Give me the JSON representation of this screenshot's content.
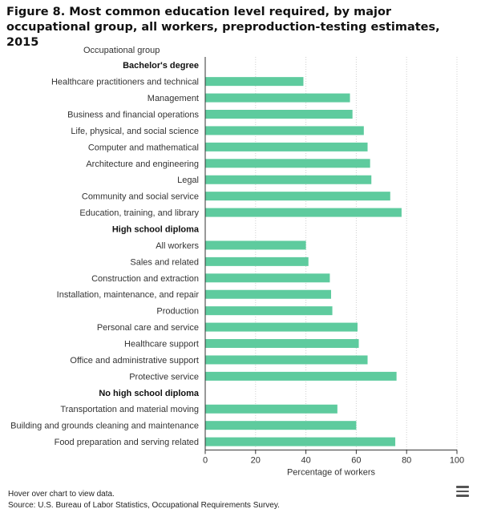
{
  "title": "Figure 8. Most common education level required, by major occupational group, all workers, preproduction-testing estimates, 2015",
  "footnote_hover": "Hover over chart to view data.",
  "footnote_source": "Source: U.S. Bureau of Labor Statistics, Occupational Requirements Survey.",
  "menu_icon": "hamburger-menu-icon",
  "colors": {
    "bar": "#5ecb9e",
    "grid": "#d0d0d0",
    "axis": "#333333"
  },
  "chart_data": {
    "type": "bar",
    "orientation": "horizontal",
    "category_axis_title": "Occupational group",
    "xlabel": "Percentage of workers",
    "xlim": [
      0,
      100
    ],
    "xticks": [
      0,
      20,
      40,
      60,
      80,
      100
    ],
    "grid": true,
    "rows": [
      {
        "label": "Bachelor's degree",
        "group_header": true
      },
      {
        "label": "Healthcare practitioners and technical",
        "value": 39
      },
      {
        "label": "Management",
        "value": 57.5
      },
      {
        "label": "Business and financial operations",
        "value": 58.5
      },
      {
        "label": "Life, physical, and social science",
        "value": 63
      },
      {
        "label": "Computer and mathematical",
        "value": 64.5
      },
      {
        "label": "Architecture and engineering",
        "value": 65.5
      },
      {
        "label": "Legal",
        "value": 66
      },
      {
        "label": "Community and social service",
        "value": 73.5
      },
      {
        "label": "Education, training, and library",
        "value": 78
      },
      {
        "label": "High school diploma",
        "group_header": true
      },
      {
        "label": "All workers",
        "value": 40
      },
      {
        "label": "Sales and related",
        "value": 41
      },
      {
        "label": "Construction and extraction",
        "value": 49.5
      },
      {
        "label": "Installation, maintenance, and repair",
        "value": 50
      },
      {
        "label": "Production",
        "value": 50.5
      },
      {
        "label": "Personal care and service",
        "value": 60.5
      },
      {
        "label": "Healthcare support",
        "value": 61
      },
      {
        "label": "Office and administrative support",
        "value": 64.5
      },
      {
        "label": "Protective service",
        "value": 76
      },
      {
        "label": "No high school diploma",
        "group_header": true
      },
      {
        "label": "Transportation and material moving",
        "value": 52.5
      },
      {
        "label": "Building and grounds cleaning and maintenance",
        "value": 60
      },
      {
        "label": "Food preparation and serving related",
        "value": 75.5
      }
    ]
  }
}
